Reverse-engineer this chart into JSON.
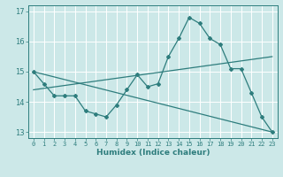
{
  "xlabel": "Humidex (Indice chaleur)",
  "bg_color": "#cce8e8",
  "grid_color": "#ffffff",
  "line_color": "#2e7d7d",
  "xlim": [
    -0.5,
    23.5
  ],
  "ylim": [
    12.8,
    17.2
  ],
  "yticks": [
    13,
    14,
    15,
    16,
    17
  ],
  "xticks": [
    0,
    1,
    2,
    3,
    4,
    5,
    6,
    7,
    8,
    9,
    10,
    11,
    12,
    13,
    14,
    15,
    16,
    17,
    18,
    19,
    20,
    21,
    22,
    23
  ],
  "line1_x": [
    0,
    1,
    2,
    3,
    4,
    5,
    6,
    7,
    8,
    9,
    10,
    11,
    12,
    13,
    14,
    15,
    16,
    17,
    18,
    19,
    20,
    21,
    22,
    23
  ],
  "line1_y": [
    15.0,
    14.6,
    14.2,
    14.2,
    14.2,
    13.7,
    13.6,
    13.5,
    13.9,
    14.4,
    14.9,
    14.5,
    14.6,
    15.5,
    16.1,
    16.8,
    16.6,
    16.1,
    15.9,
    15.1,
    15.1,
    14.3,
    13.5,
    13.0
  ],
  "line2_x": [
    0,
    23
  ],
  "line2_y": [
    15.0,
    13.0
  ],
  "line3_x": [
    0,
    23
  ],
  "line3_y": [
    14.4,
    15.5
  ]
}
